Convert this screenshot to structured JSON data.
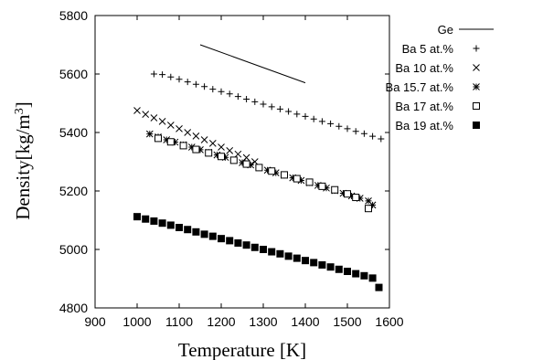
{
  "chart_data": {
    "type": "scatter",
    "title": "",
    "xlabel": "Temperature [K]",
    "ylabel_parts": {
      "main": "Density[kg/m",
      "sup": "3",
      "end": "]"
    },
    "xlim": [
      900,
      1600
    ],
    "ylim": [
      4800,
      5800
    ],
    "xticks": [
      900,
      1000,
      1100,
      1200,
      1300,
      1400,
      1500,
      1600
    ],
    "yticks": [
      4800,
      5000,
      5200,
      5400,
      5600,
      5800
    ],
    "grid": false,
    "legend_position": "top-right, outside plot",
    "series": [
      {
        "name": "Ge",
        "marker": "line",
        "x": [
          1150,
          1400
        ],
        "y": [
          5700,
          5570
        ]
      },
      {
        "name": "Ba 5 at.%",
        "marker": "plus",
        "x": [
          1040,
          1060,
          1080,
          1100,
          1120,
          1140,
          1160,
          1180,
          1200,
          1220,
          1240,
          1260,
          1280,
          1300,
          1320,
          1340,
          1360,
          1380,
          1400,
          1420,
          1440,
          1460,
          1480,
          1500,
          1520,
          1540,
          1560,
          1580
        ],
        "y": [
          5600,
          5598,
          5590,
          5582,
          5573,
          5565,
          5557,
          5548,
          5540,
          5532,
          5523,
          5514,
          5505,
          5497,
          5488,
          5480,
          5472,
          5463,
          5455,
          5446,
          5438,
          5430,
          5421,
          5413,
          5404,
          5396,
          5387,
          5378
        ]
      },
      {
        "name": "Ba 10 at.%",
        "marker": "x",
        "x": [
          1000,
          1020,
          1040,
          1060,
          1080,
          1100,
          1120,
          1140,
          1160,
          1180,
          1200,
          1220,
          1240,
          1260,
          1280
        ],
        "y": [
          5475,
          5462,
          5450,
          5438,
          5425,
          5413,
          5400,
          5388,
          5375,
          5363,
          5350,
          5338,
          5326,
          5314,
          5300
        ]
      },
      {
        "name": "Ba 15.7 at.%",
        "marker": "star",
        "x": [
          1030,
          1050,
          1070,
          1090,
          1110,
          1130,
          1150,
          1170,
          1190,
          1210,
          1230,
          1250,
          1270,
          1290,
          1310,
          1330,
          1350,
          1370,
          1390,
          1410,
          1430,
          1450,
          1470,
          1490,
          1510,
          1530,
          1550,
          1560
        ],
        "y": [
          5395,
          5385,
          5375,
          5367,
          5358,
          5350,
          5341,
          5332,
          5323,
          5315,
          5306,
          5297,
          5289,
          5280,
          5271,
          5262,
          5254,
          5245,
          5236,
          5228,
          5219,
          5210,
          5201,
          5192,
          5183,
          5175,
          5166,
          5152
        ]
      },
      {
        "name": "Ba 17 at.%",
        "marker": "square-open",
        "x": [
          1050,
          1080,
          1110,
          1140,
          1170,
          1200,
          1230,
          1260,
          1290,
          1320,
          1350,
          1380,
          1410,
          1440,
          1470,
          1500,
          1520,
          1550
        ],
        "y": [
          5380,
          5368,
          5355,
          5342,
          5330,
          5318,
          5305,
          5292,
          5280,
          5268,
          5255,
          5242,
          5230,
          5216,
          5204,
          5190,
          5178,
          5140
        ]
      },
      {
        "name": "Ba 19 at.%",
        "marker": "square-filled",
        "x": [
          1000,
          1020,
          1040,
          1060,
          1080,
          1100,
          1120,
          1140,
          1160,
          1180,
          1200,
          1220,
          1240,
          1260,
          1280,
          1300,
          1320,
          1340,
          1360,
          1380,
          1400,
          1420,
          1440,
          1460,
          1480,
          1500,
          1520,
          1540,
          1560,
          1575
        ],
        "y": [
          5112,
          5104,
          5097,
          5090,
          5083,
          5075,
          5068,
          5060,
          5052,
          5045,
          5037,
          5030,
          5022,
          5015,
          5007,
          5000,
          4992,
          4985,
          4977,
          4970,
          4962,
          4955,
          4947,
          4940,
          4932,
          4925,
          4917,
          4910,
          4902,
          4870
        ]
      }
    ]
  }
}
